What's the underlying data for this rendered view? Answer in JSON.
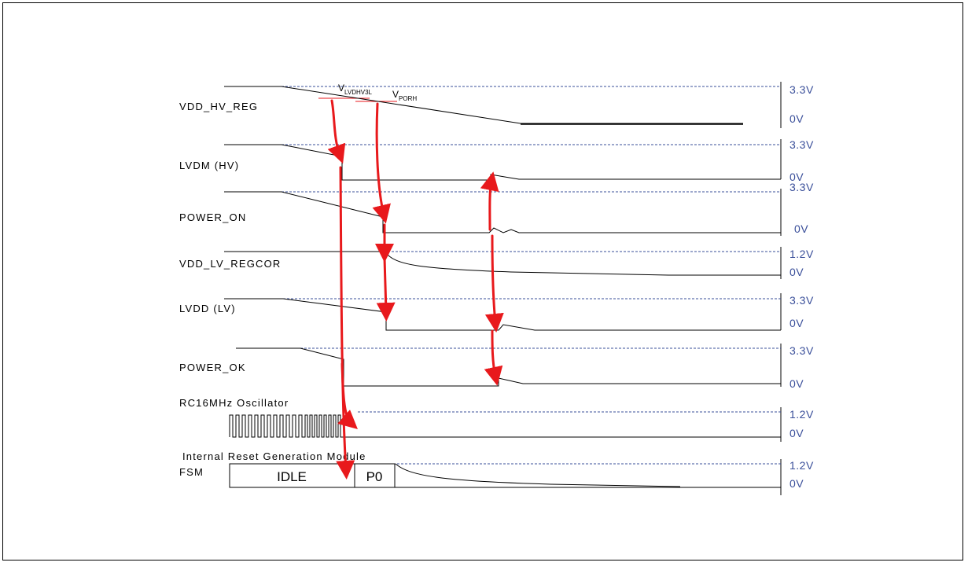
{
  "signals": [
    {
      "label": "VDD_HV_REG",
      "high": "3.3V",
      "low": "0V"
    },
    {
      "label": "LVDM (HV)",
      "high": "3.3V",
      "low": "0V"
    },
    {
      "label": "POWER_ON",
      "high": "3.3V",
      "low": "0V"
    },
    {
      "label": "VDD_LV_REGCOR",
      "high": "1.2V",
      "low": "0V"
    },
    {
      "label": "LVDD (LV)",
      "high": "3.3V",
      "low": "0V"
    },
    {
      "label": "POWER_OK",
      "high": "3.3V",
      "low": "0V"
    },
    {
      "label": "RC16MHz Oscillator",
      "high": "1.2V",
      "low": "0V"
    },
    {
      "label": "Internal Reset Generation Module",
      "label2": "FSM",
      "high": "1.2V",
      "low": "0V"
    }
  ],
  "thresholds": [
    {
      "base": "V",
      "sub": "LVDHV3L"
    },
    {
      "base": "V",
      "sub": "PORH"
    }
  ],
  "fsm_states": [
    "IDLE",
    "P0"
  ],
  "colors": {
    "dashed_ref": "#3a4f9a",
    "arrow": "#e8191c",
    "trace": "#000000",
    "volt_text": "#3a4f9a"
  }
}
